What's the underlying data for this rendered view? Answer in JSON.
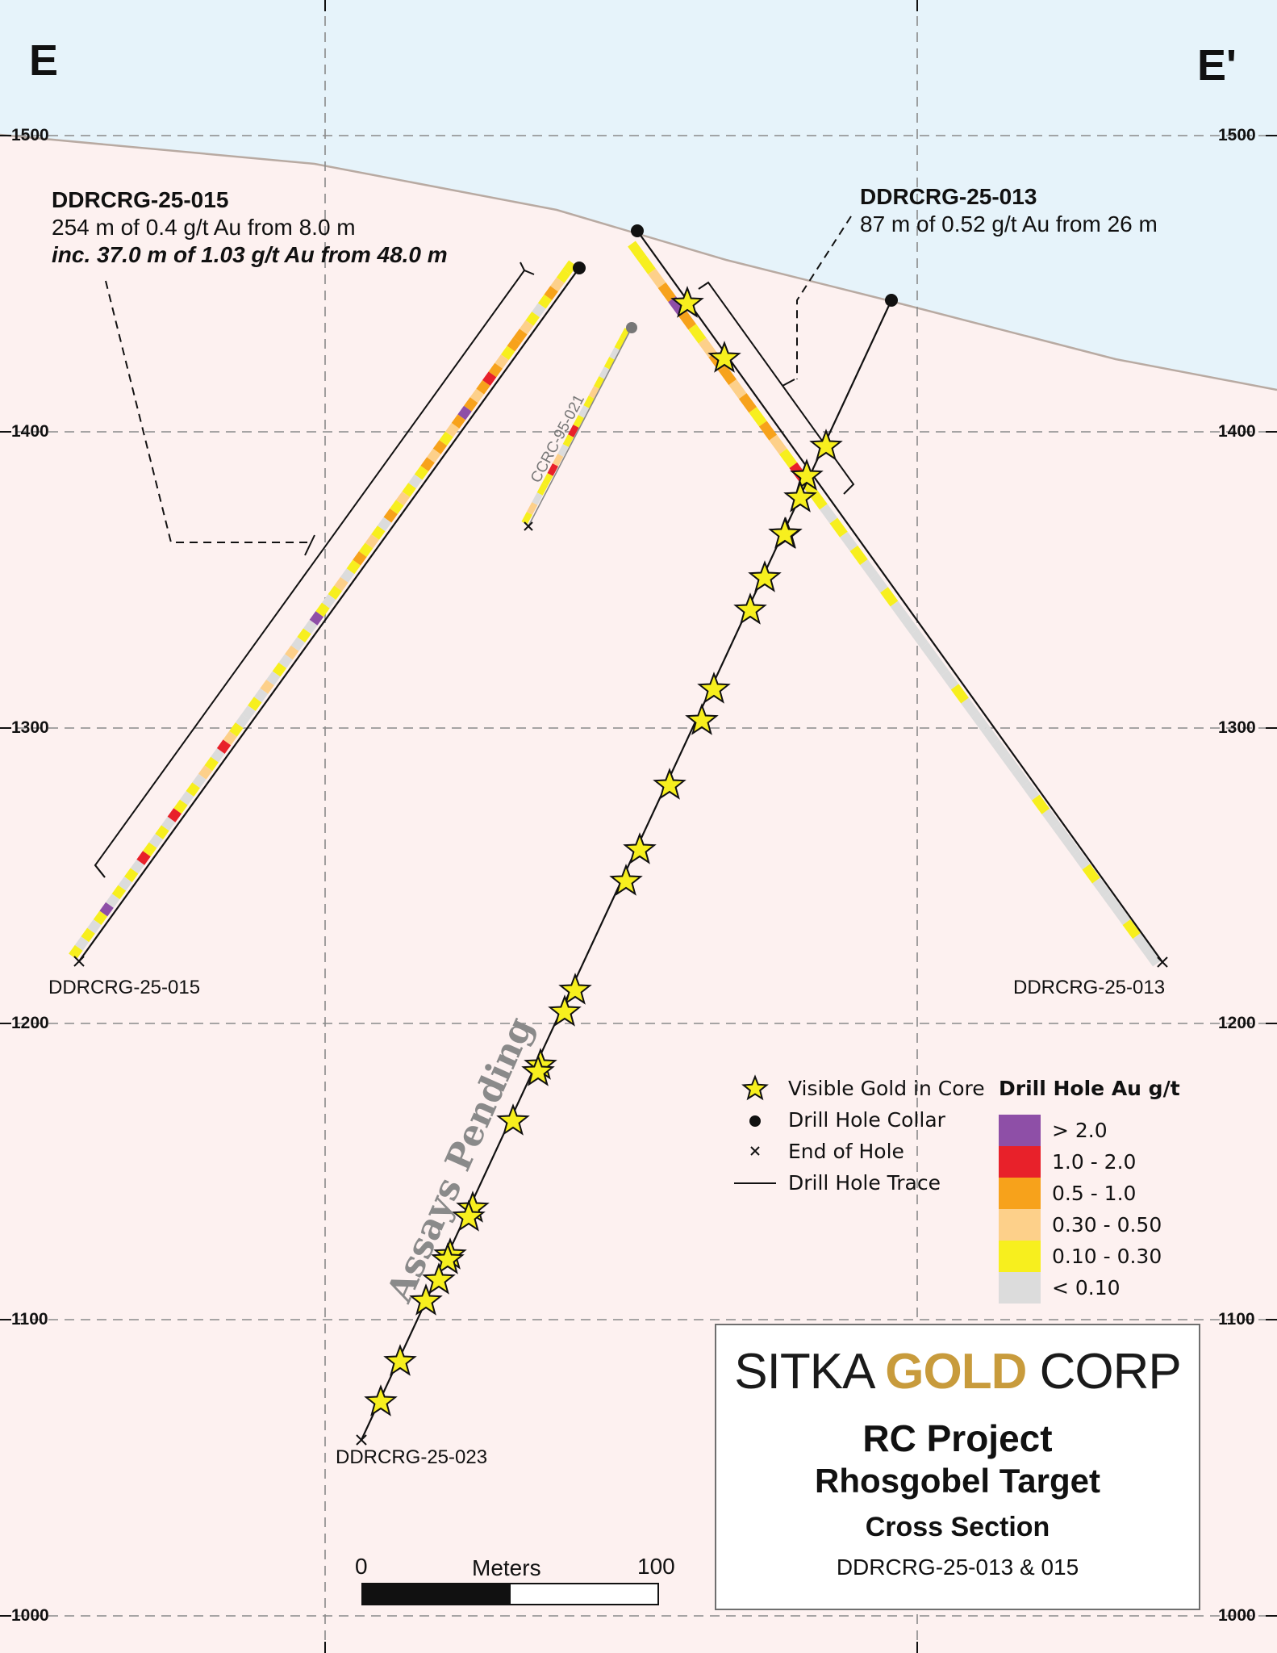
{
  "section": {
    "start_label": "E",
    "end_label": "E'",
    "elevations": [
      "1500",
      "1400",
      "1300",
      "1200",
      "1100",
      "1000"
    ]
  },
  "holes": {
    "h015": {
      "name": "DDRCRG-25-015",
      "intercept": "254 m of 0.4 g/t Au from 8.0 m",
      "including": "inc. 37.0 m of 1.03 g/t Au from 48.0 m",
      "end_label": "DDRCRG-25-015"
    },
    "h013": {
      "name": "DDRCRG-25-013",
      "intercept": "87 m of 0.52 g/t Au from 26 m",
      "end_label": "DDRCRG-25-013"
    },
    "h023": {
      "end_label": "DDRCRG-25-023",
      "status": "Assays Pending"
    },
    "h021": {
      "name": "CCRC-95-021"
    }
  },
  "legend": {
    "symbols": [
      {
        "icon": "star-icon",
        "label": "Visible Gold in Core"
      },
      {
        "icon": "collar-dot-icon",
        "label": "Drill Hole Collar"
      },
      {
        "icon": "cross-icon",
        "label": "End of Hole"
      },
      {
        "icon": "trace-line-icon",
        "label": "Drill Hole Trace"
      }
    ],
    "grade_title": "Drill Hole Au g/t",
    "grades": [
      {
        "label": "> 2.0",
        "color": "#8e4fa7"
      },
      {
        "label": "1.0 - 2.0",
        "color": "#e8212a"
      },
      {
        "label": "0.5 - 1.0",
        "color": "#f7a21b"
      },
      {
        "label": "0.30 - 0.50",
        "color": "#fdd08a"
      },
      {
        "label": "0.10 - 0.30",
        "color": "#f7ef1e"
      },
      {
        "label": "< 0.10",
        "color": "#dcdcdc"
      }
    ]
  },
  "title_block": {
    "logo_sitka": "SITKA",
    "logo_gold": "GOLD",
    "logo_corp": "CORP",
    "project": "RC Project",
    "target": "Rhosgobel Target",
    "subtitle": "Cross Section",
    "holes": "DDRCRG-25-013 & 015"
  },
  "scale": {
    "start": "0",
    "unit": "Meters",
    "end": "100"
  },
  "colors": {
    "sky": "#e6f3fa",
    "ground": "#fdf1f0",
    "topography": "#b8aaa2",
    "grid": "#8a8a8a"
  }
}
